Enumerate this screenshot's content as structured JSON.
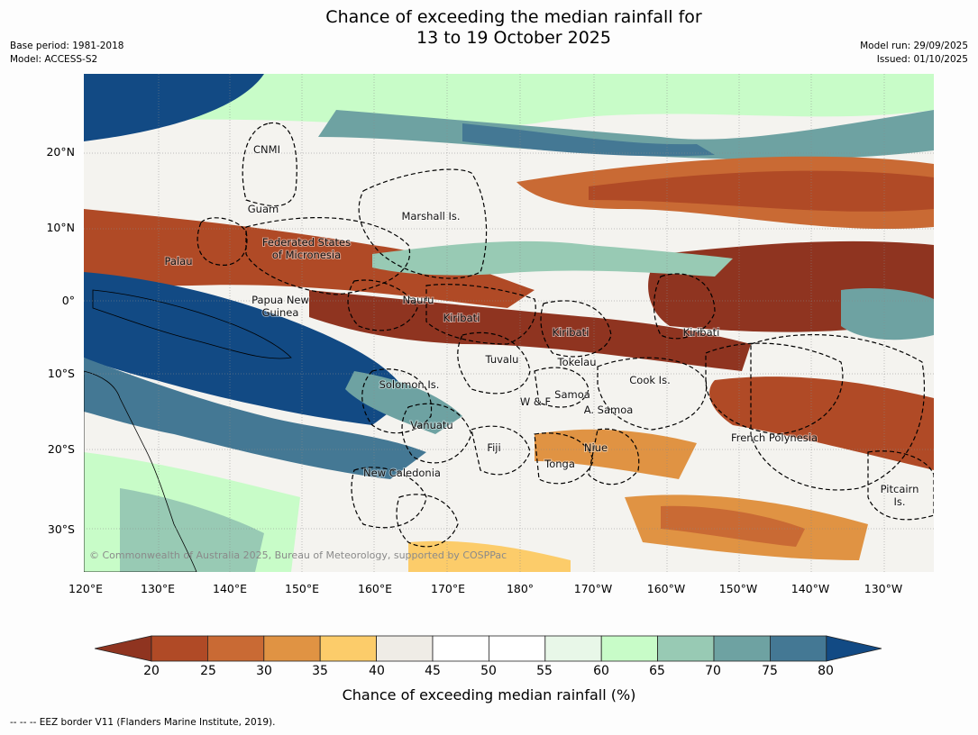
{
  "title": {
    "line1": "Chance of exceeding the median rainfall for",
    "line2": "13 to 19 October 2025"
  },
  "meta": {
    "base_period": "Base period: 1981-2018",
    "model": "Model: ACCESS-S2",
    "model_run": "Model run: 29/09/2025",
    "issued": "Issued: 01/10/2025"
  },
  "map": {
    "lat_labels": [
      "20°N",
      "10°N",
      "0°",
      "10°S",
      "20°S",
      "30°S"
    ],
    "lon_labels": [
      "120°E",
      "130°E",
      "140°E",
      "150°E",
      "160°E",
      "170°E",
      "180°",
      "170°W",
      "160°W",
      "150°W",
      "140°W",
      "130°W"
    ],
    "places": [
      "CNMI",
      "Guam",
      "Marshall Is.",
      "Federated States",
      "of Micronesia",
      "Palau",
      "Papua New",
      "Guinea",
      "Nauru",
      "Kiribati",
      "Kiribati",
      "Kiribati",
      "Tuvalu",
      "Tokelau",
      "Solomon Is.",
      "Cook Is.",
      "Samoa",
      "W & F",
      "A. Samoa",
      "Vanuatu",
      "French Polynesia",
      "Fiji",
      "Niue",
      "Tonga",
      "New Caledonia",
      "Pitcairn",
      "Is."
    ],
    "copyright": "© Commonwealth of Australia 2025, Bureau of Meteorology, supported by COSPPac"
  },
  "legend": {
    "ticks": [
      "20",
      "25",
      "30",
      "35",
      "40",
      "45",
      "50",
      "55",
      "60",
      "65",
      "70",
      "75",
      "80"
    ],
    "colors": [
      "#8f3420",
      "#b04a26",
      "#c96a34",
      "#e09343",
      "#fccc6a",
      "#efece6",
      "#ffffff",
      "#ffffff",
      "#e8f7e8",
      "#c8fcc8",
      "#98cab4",
      "#6ea2a2",
      "#447894",
      "#124a84"
    ],
    "label": "Chance of exceeding median rainfall (%)"
  },
  "footnote": "--  --  -- EEZ border V11 (Flanders Marine Institute, 2019)."
}
